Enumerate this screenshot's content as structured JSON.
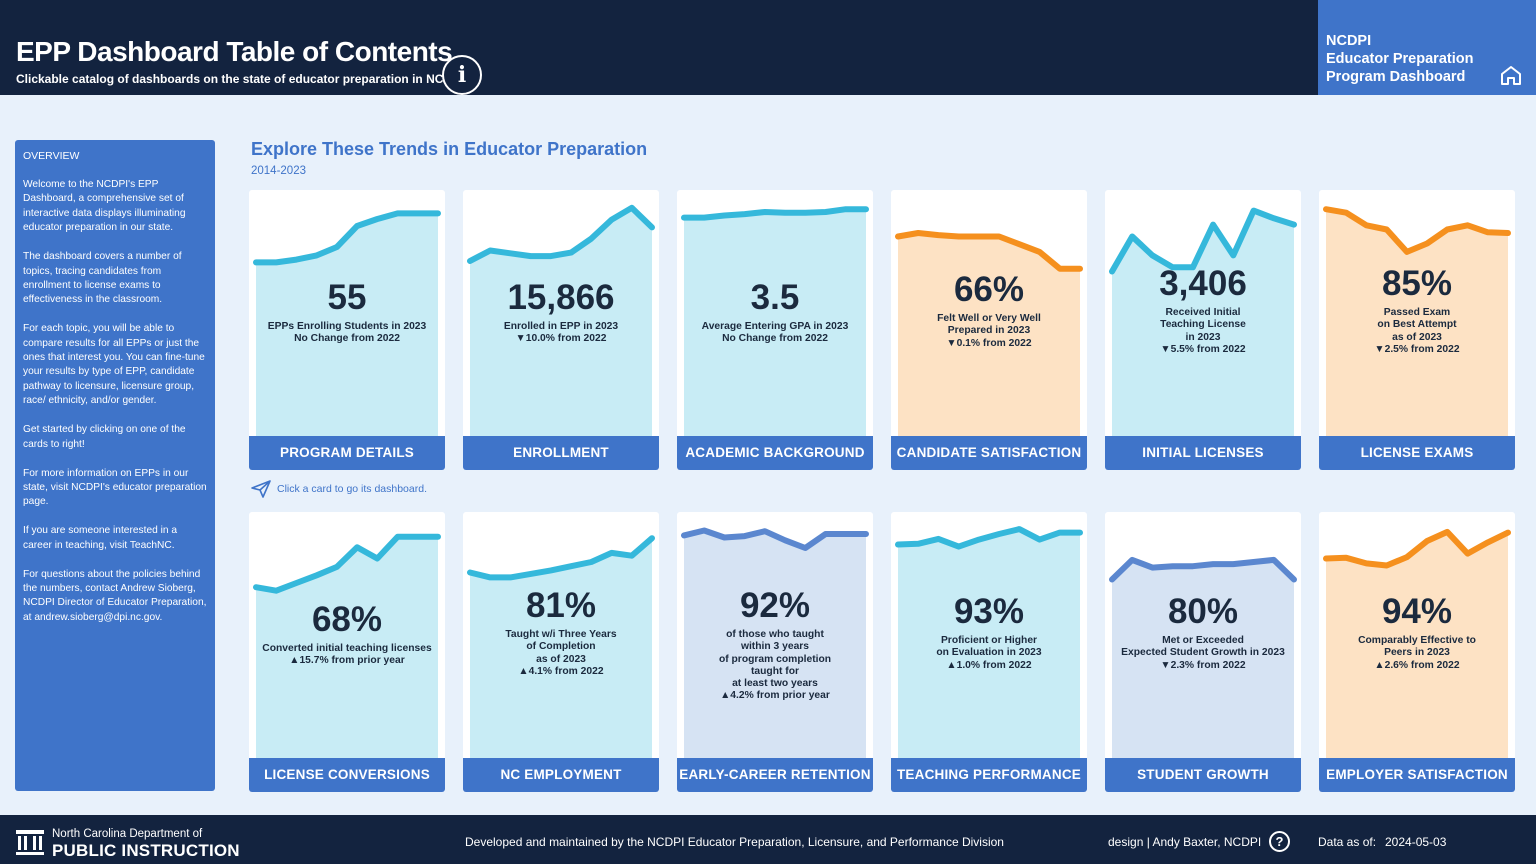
{
  "header": {
    "title": "EPP Dashboard Table of Contents",
    "subtitle": "Clickable catalog of dashboards on the state of educator preparation in NC",
    "info_icon": "info-icon",
    "brand_lines": [
      "NCDPI",
      "Educator Preparation",
      "Program Dashboard"
    ],
    "home_icon": "home-icon"
  },
  "sidebar": {
    "heading": "OVERVIEW",
    "paragraphs": [
      "Welcome to the NCDPI's  EPP Dashboard, a comprehensive set of interactive data displays illuminating educator preparation in our state.",
      "The dashboard covers a number of topics, tracing candidates from enrollment to license exams to effectiveness in the classroom.",
      "For each topic, you will be able to compare results for all EPPs or just the ones that interest you. You can fine-tune your results by type of EPP, candidate pathway to licensure, licensure group, race/ ethnicity, and/or gender.",
      "Get started by clicking on one of the cards to right!",
      "For more information on EPPs in our state, visit NCDPI's educator preparation page.",
      "If you are someone interested in a career in teaching, visit  TeachNC.",
      "For questions about the policies behind the numbers, contact Andrew Sioberg, NCDPI Director of Educator Preparation, at andrew.sioberg@dpi.nc.gov."
    ]
  },
  "main": {
    "title": "Explore These Trends in Educator Preparation",
    "range": "2014-2023",
    "hint": "Click a card to go its dashboard.",
    "hint_icon": "paper-plane-icon"
  },
  "colors": {
    "blue_line": "#35b8db",
    "blue_fill": "#c8ecf5",
    "orange_line": "#f5901e",
    "orange_fill": "#fde2c4",
    "navy_line": "#5b87cf",
    "navy_fill": "#d6e3f3"
  },
  "cards": [
    {
      "button": "PROGRAM DETAILS",
      "value": "55",
      "desc": [
        "EPPs Enrolling Students in 2023",
        "No Change from 2022"
      ],
      "trend": [
        0.18,
        0.18,
        0.22,
        0.28,
        0.4,
        0.7,
        0.8,
        0.88,
        0.88,
        0.88
      ],
      "theme": "blue"
    },
    {
      "button": "ENROLLMENT",
      "value": "15,866",
      "desc": [
        "Enrolled in EPP in 2023",
        "▼10.0% from 2022"
      ],
      "trend": [
        0.2,
        0.35,
        0.31,
        0.27,
        0.27,
        0.32,
        0.52,
        0.79,
        0.96,
        0.68
      ],
      "theme": "blue"
    },
    {
      "button": "ACADEMIC BACKGROUND",
      "value": "3.5",
      "desc": [
        "Average Entering GPA in 2023",
        "No Change from 2022"
      ],
      "trend": [
        0.82,
        0.82,
        0.85,
        0.87,
        0.9,
        0.89,
        0.89,
        0.9,
        0.94,
        0.94
      ],
      "theme": "blue"
    },
    {
      "button": "CANDIDATE SATISFACTION",
      "value": "66%",
      "desc": [
        "Felt Well or Very Well",
        "Prepared in 2023",
        "▼0.1% from 2022"
      ],
      "trend": [
        0.55,
        0.6,
        0.57,
        0.55,
        0.55,
        0.55,
        0.44,
        0.33,
        0.09,
        0.09
      ],
      "theme": "orange"
    },
    {
      "button": "INITIAL LICENSES",
      "value": "3,406",
      "desc": [
        "Received Initial",
        "Teaching License",
        "in 2023",
        "▼5.5% from 2022"
      ],
      "trend": [
        0.05,
        0.55,
        0.28,
        0.11,
        0.11,
        0.72,
        0.28,
        0.92,
        0.81,
        0.72
      ],
      "theme": "blue"
    },
    {
      "button": "LICENSE EXAMS",
      "value": "85%",
      "desc": [
        "Passed Exam",
        "on Best Attempt",
        "as of 2023",
        "▼2.5% from 2022"
      ],
      "trend": [
        0.94,
        0.89,
        0.71,
        0.65,
        0.33,
        0.45,
        0.65,
        0.71,
        0.61,
        0.6
      ],
      "theme": "orange"
    },
    {
      "button": "LICENSE CONVERSIONS",
      "value": "68%",
      "desc": [
        "Converted initial teaching licenses",
        "▲15.7% from prior year"
      ],
      "trend": [
        0.14,
        0.09,
        0.2,
        0.31,
        0.43,
        0.71,
        0.55,
        0.86,
        0.86,
        0.86
      ],
      "theme": "blue"
    },
    {
      "button": "NC EMPLOYMENT",
      "value": "81%",
      "desc": [
        "Taught w/i Three Years",
        "of Completion",
        "as of 2023",
        "▲4.1% from 2022"
      ],
      "trend": [
        0.35,
        0.28,
        0.28,
        0.33,
        0.38,
        0.44,
        0.5,
        0.63,
        0.59,
        0.84
      ],
      "theme": "blue"
    },
    {
      "button": "EARLY-CAREER RETENTION",
      "value": "92%",
      "desc": [
        "of those who taught",
        "within 3 years",
        "of program completion",
        "taught for",
        "at least two years",
        "▲4.2% from prior year"
      ],
      "trend": [
        0.88,
        0.95,
        0.85,
        0.87,
        0.94,
        0.81,
        0.7,
        0.9,
        0.9,
        0.9
      ],
      "theme": "navy"
    },
    {
      "button": "TEACHING PERFORMANCE",
      "value": "93%",
      "desc": [
        "Proficient or Higher",
        "on Evaluation in 2023",
        "▲1.0% from 2022"
      ],
      "trend": [
        0.75,
        0.76,
        0.83,
        0.72,
        0.82,
        0.9,
        0.97,
        0.82,
        0.92,
        0.92
      ],
      "theme": "blue"
    },
    {
      "button": "STUDENT GROWTH",
      "value": "80%",
      "desc": [
        "Met or Exceeded",
        "Expected Student Growth in 2023",
        "▼2.3% from 2022"
      ],
      "trend": [
        0.25,
        0.53,
        0.42,
        0.44,
        0.44,
        0.47,
        0.47,
        0.5,
        0.53,
        0.25
      ],
      "theme": "navy"
    },
    {
      "button": "EMPLOYER SATISFACTION",
      "value": "94%",
      "desc": [
        "Comparably Effective to",
        "Peers in 2023",
        "▲2.6% from 2022"
      ],
      "trend": [
        0.55,
        0.56,
        0.48,
        0.45,
        0.57,
        0.8,
        0.93,
        0.62,
        0.78,
        0.92
      ],
      "theme": "orange"
    }
  ],
  "footer": {
    "org_line1": "North Carolina Department of",
    "org_line2": "PUBLIC INSTRUCTION",
    "logo_icon": "capitol-logo-icon",
    "developed": "Developed and maintained by the NCDPI Educator Preparation, Licensure, and Performance Division",
    "design": "design | Andy Baxter, NCDPI",
    "help_icon": "help-icon",
    "as_of_label": "Data as of:",
    "as_of_date": "2024-05-03"
  }
}
